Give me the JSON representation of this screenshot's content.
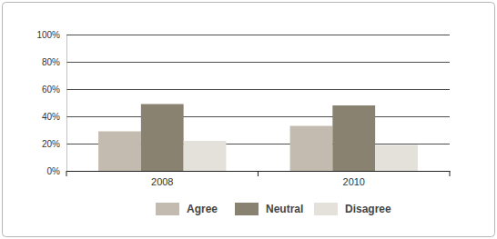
{
  "chart_data": {
    "type": "bar",
    "categories": [
      "2008",
      "2010"
    ],
    "series": [
      {
        "name": "Agree",
        "color": "#c3bbb0",
        "values": [
          29,
          33
        ]
      },
      {
        "name": "Neutral",
        "color": "#8a8270",
        "values": [
          49,
          48
        ]
      },
      {
        "name": "Disagree",
        "color": "#e4e0da",
        "values": [
          22,
          19
        ]
      }
    ],
    "ylim": [
      0,
      100
    ],
    "yticks": [
      {
        "value": 0,
        "label": "0%"
      },
      {
        "value": 20,
        "label": "20%"
      },
      {
        "value": 40,
        "label": "40%"
      },
      {
        "value": 60,
        "label": "60%"
      },
      {
        "value": 80,
        "label": "80%"
      },
      {
        "value": 100,
        "label": "100%"
      }
    ],
    "grid": true,
    "legend": "bottom"
  }
}
